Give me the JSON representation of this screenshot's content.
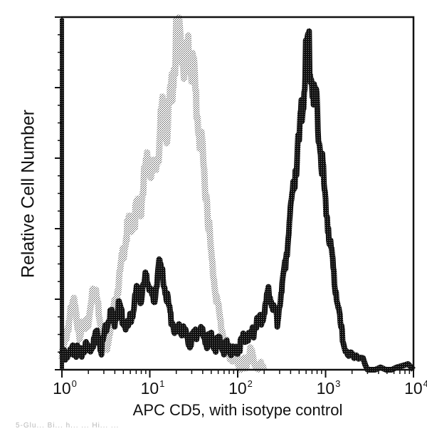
{
  "chart_data": {
    "type": "area",
    "title": "",
    "xlabel": "APC CD5, with isotype control",
    "ylabel": "Relative Cell Number",
    "xscale": "log",
    "xlim": [
      1,
      10000
    ],
    "ylim": [
      0,
      100
    ],
    "x_tick_labels": [
      {
        "base": "10",
        "exp": "0",
        "value": 1
      },
      {
        "base": "10",
        "exp": "1",
        "value": 10
      },
      {
        "base": "10",
        "exp": "2",
        "value": 100
      },
      {
        "base": "10",
        "exp": "3",
        "value": 1000
      },
      {
        "base": "10",
        "exp": "4",
        "value": 10000
      }
    ],
    "y_ticks_unlabeled": 5,
    "grid": false,
    "legend": null,
    "series": [
      {
        "name": "Isotype control",
        "color": "#8a8a8a",
        "style": "stippled",
        "log10_x": [
          0.0,
          0.05,
          0.1,
          0.15,
          0.2,
          0.25,
          0.3,
          0.35,
          0.4,
          0.45,
          0.5,
          0.55,
          0.6,
          0.65,
          0.7,
          0.75,
          0.8,
          0.85,
          0.9,
          0.95,
          1.0,
          1.05,
          1.1,
          1.15,
          1.2,
          1.25,
          1.3,
          1.35,
          1.4,
          1.45,
          1.5,
          1.55,
          1.6,
          1.65,
          1.7,
          1.75,
          1.8,
          1.85,
          1.9,
          1.95,
          2.0,
          2.05,
          2.1,
          2.15,
          2.2,
          2.3
        ],
        "values": [
          3,
          10,
          16,
          20,
          8,
          14,
          12,
          24,
          20,
          12,
          6,
          12,
          18,
          25,
          34,
          40,
          42,
          45,
          47,
          56,
          60,
          55,
          63,
          74,
          68,
          80,
          92,
          95,
          85,
          90,
          84,
          70,
          60,
          48,
          32,
          22,
          14,
          8,
          5,
          3,
          2,
          1,
          2,
          5,
          2,
          0
        ]
      },
      {
        "name": "APC CD5",
        "color": "#1a1a1a",
        "style": "stippled-dense",
        "log10_x": [
          0.0,
          0.05,
          0.1,
          0.15,
          0.2,
          0.25,
          0.3,
          0.35,
          0.4,
          0.45,
          0.5,
          0.55,
          0.6,
          0.65,
          0.7,
          0.75,
          0.8,
          0.85,
          0.9,
          0.95,
          1.0,
          1.05,
          1.1,
          1.15,
          1.2,
          1.25,
          1.3,
          1.35,
          1.4,
          1.45,
          1.5,
          1.55,
          1.6,
          1.65,
          1.7,
          1.75,
          1.8,
          1.85,
          1.9,
          1.95,
          2.0,
          2.05,
          2.1,
          2.15,
          2.2,
          2.25,
          2.3,
          2.35,
          2.4,
          2.45,
          2.5,
          2.55,
          2.6,
          2.65,
          2.7,
          2.75,
          2.8,
          2.85,
          2.9,
          2.95,
          3.0,
          3.05,
          3.1,
          3.15,
          3.2,
          3.3,
          3.5,
          4.0
        ],
        "values": [
          3,
          5,
          4,
          6,
          4,
          7,
          5,
          8,
          10,
          6,
          12,
          16,
          14,
          18,
          14,
          12,
          16,
          22,
          20,
          26,
          24,
          18,
          30,
          26,
          20,
          14,
          10,
          12,
          10,
          8,
          9,
          11,
          10,
          8,
          9,
          7,
          8,
          6,
          7,
          5,
          6,
          8,
          10,
          9,
          12,
          14,
          16,
          22,
          18,
          14,
          22,
          32,
          44,
          56,
          64,
          78,
          95,
          82,
          74,
          60,
          48,
          36,
          26,
          16,
          8,
          3,
          1,
          0
        ]
      }
    ]
  },
  "footer": {
    "partial_text": "5-Glu... Bi... h... ... Hi... ..."
  }
}
